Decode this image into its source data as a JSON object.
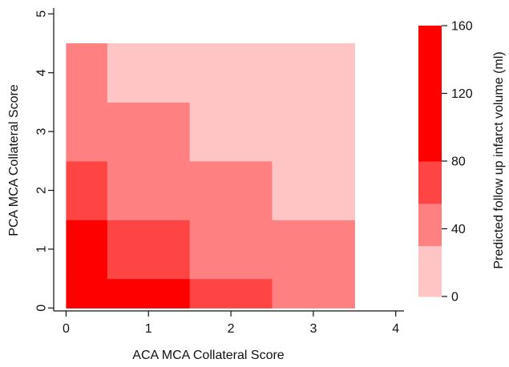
{
  "chart_data": {
    "type": "heatmap",
    "xlabel": "ACA MCA Collateral Score",
    "ylabel": "PCA MCA Collateral Score",
    "xlim": [
      -0.15,
      4.1
    ],
    "ylim": [
      -0.05,
      5.1
    ],
    "x_ticks": [
      "0",
      "1",
      "2",
      "3",
      "4"
    ],
    "y_ticks": [
      "0",
      "1",
      "2",
      "3",
      "4",
      "5"
    ],
    "x_tick_values": [
      0,
      1,
      2,
      3,
      4
    ],
    "y_tick_values": [
      0,
      1,
      2,
      3,
      4,
      5
    ],
    "cells": [
      {
        "x0": 0,
        "x1": 0.5,
        "y0": 0,
        "y1": 0.5,
        "level": 4
      },
      {
        "x0": 0.5,
        "x1": 1.5,
        "y0": 0,
        "y1": 0.5,
        "level": 4
      },
      {
        "x0": 1.5,
        "x1": 2.5,
        "y0": 0,
        "y1": 0.5,
        "level": 3
      },
      {
        "x0": 2.5,
        "x1": 3.5,
        "y0": 0,
        "y1": 0.5,
        "level": 2
      },
      {
        "x0": 0,
        "x1": 0.5,
        "y0": 0.5,
        "y1": 1.5,
        "level": 4
      },
      {
        "x0": 0.5,
        "x1": 1.5,
        "y0": 0.5,
        "y1": 1.5,
        "level": 3
      },
      {
        "x0": 1.5,
        "x1": 2.5,
        "y0": 0.5,
        "y1": 1.5,
        "level": 2
      },
      {
        "x0": 2.5,
        "x1": 3.5,
        "y0": 0.5,
        "y1": 1.5,
        "level": 2
      },
      {
        "x0": 0,
        "x1": 0.5,
        "y0": 1.5,
        "y1": 2.5,
        "level": 3
      },
      {
        "x0": 0.5,
        "x1": 1.5,
        "y0": 1.5,
        "y1": 2.5,
        "level": 2
      },
      {
        "x0": 1.5,
        "x1": 2.5,
        "y0": 1.5,
        "y1": 2.5,
        "level": 2
      },
      {
        "x0": 2.5,
        "x1": 3.5,
        "y0": 1.5,
        "y1": 2.5,
        "level": 1
      },
      {
        "x0": 0,
        "x1": 0.5,
        "y0": 2.5,
        "y1": 3.5,
        "level": 2
      },
      {
        "x0": 0.5,
        "x1": 1.5,
        "y0": 2.5,
        "y1": 3.5,
        "level": 2
      },
      {
        "x0": 1.5,
        "x1": 2.5,
        "y0": 2.5,
        "y1": 3.5,
        "level": 1
      },
      {
        "x0": 2.5,
        "x1": 3.5,
        "y0": 2.5,
        "y1": 3.5,
        "level": 1
      },
      {
        "x0": 0,
        "x1": 0.5,
        "y0": 3.5,
        "y1": 4.5,
        "level": 2
      },
      {
        "x0": 0.5,
        "x1": 1.5,
        "y0": 3.5,
        "y1": 4.5,
        "level": 1
      },
      {
        "x0": 1.5,
        "x1": 2.5,
        "y0": 3.5,
        "y1": 4.5,
        "level": 1
      },
      {
        "x0": 2.5,
        "x1": 3.5,
        "y0": 3.5,
        "y1": 4.5,
        "level": 1
      }
    ],
    "colorbar": {
      "title": "Predicted follow up infarct volume (ml)",
      "range": [
        0,
        160
      ],
      "ticks": [
        "0",
        "40",
        "80",
        "120",
        "160"
      ],
      "tick_values": [
        0,
        40,
        80,
        120,
        160
      ],
      "bins": [
        {
          "from": 0,
          "to": 30,
          "color": "#ffc4c4",
          "level": 1
        },
        {
          "from": 30,
          "to": 55,
          "color": "#ff8080",
          "level": 2
        },
        {
          "from": 55,
          "to": 80,
          "color": "#ff4444",
          "level": 3
        },
        {
          "from": 80,
          "to": 160,
          "color": "#ff0000",
          "level": 4
        }
      ]
    }
  }
}
